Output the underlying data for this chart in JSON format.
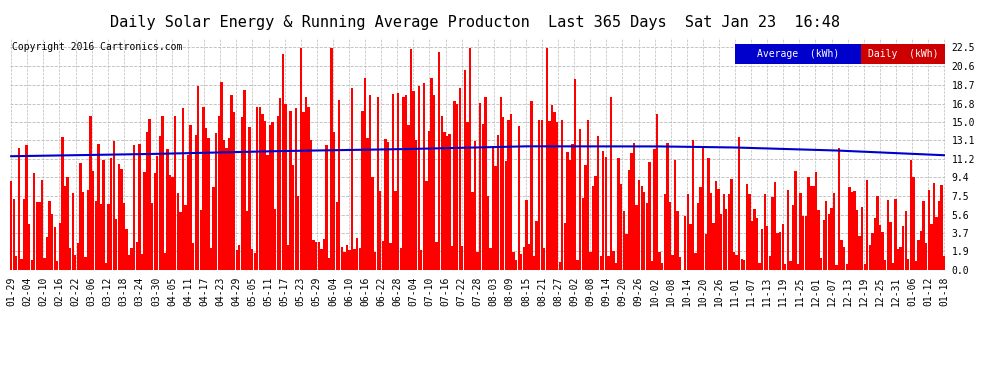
{
  "title": "Daily Solar Energy & Running Average Producton  Last 365 Days  Sat Jan 23  16:48",
  "copyright": "Copyright 2016 Cartronics.com",
  "bar_color": "#ff0000",
  "avg_line_color": "#0000cd",
  "avg_label": "Average  (kWh)",
  "daily_label": "Daily  (kWh)",
  "ylabel_ticks": [
    0.0,
    1.9,
    3.7,
    5.6,
    7.5,
    9.4,
    11.2,
    13.1,
    15.0,
    16.8,
    18.7,
    20.6,
    22.5
  ],
  "ylim": [
    0,
    23.5
  ],
  "bg_color": "#ffffff",
  "plot_bg_color": "#ffffff",
  "grid_color": "#bbbbbb",
  "title_fontsize": 11,
  "copyright_fontsize": 7,
  "tick_fontsize": 7,
  "avg_linewidth": 1.5,
  "x_tick_labels": [
    "01-29",
    "02-04",
    "02-10",
    "02-16",
    "02-22",
    "03-06",
    "03-12",
    "03-18",
    "03-24",
    "03-30",
    "04-05",
    "04-11",
    "04-17",
    "04-23",
    "04-29",
    "05-05",
    "05-11",
    "05-17",
    "05-23",
    "05-29",
    "06-04",
    "06-10",
    "06-16",
    "06-22",
    "06-28",
    "07-04",
    "07-10",
    "07-16",
    "07-22",
    "07-28",
    "08-03",
    "08-09",
    "08-15",
    "08-21",
    "08-27",
    "09-02",
    "09-08",
    "09-14",
    "09-20",
    "09-26",
    "10-02",
    "10-08",
    "10-14",
    "10-20",
    "10-26",
    "11-01",
    "11-07",
    "11-13",
    "11-19",
    "11-25",
    "12-01",
    "12-07",
    "12-13",
    "12-19",
    "12-25",
    "12-31",
    "01-06",
    "01-12",
    "01-18"
  ],
  "running_avg_keypoints_x": [
    0,
    50,
    100,
    150,
    200,
    250,
    280,
    320,
    355,
    364
  ],
  "running_avg_keypoints_y": [
    11.5,
    11.7,
    12.0,
    12.2,
    12.5,
    12.5,
    12.4,
    12.1,
    11.7,
    11.6
  ]
}
